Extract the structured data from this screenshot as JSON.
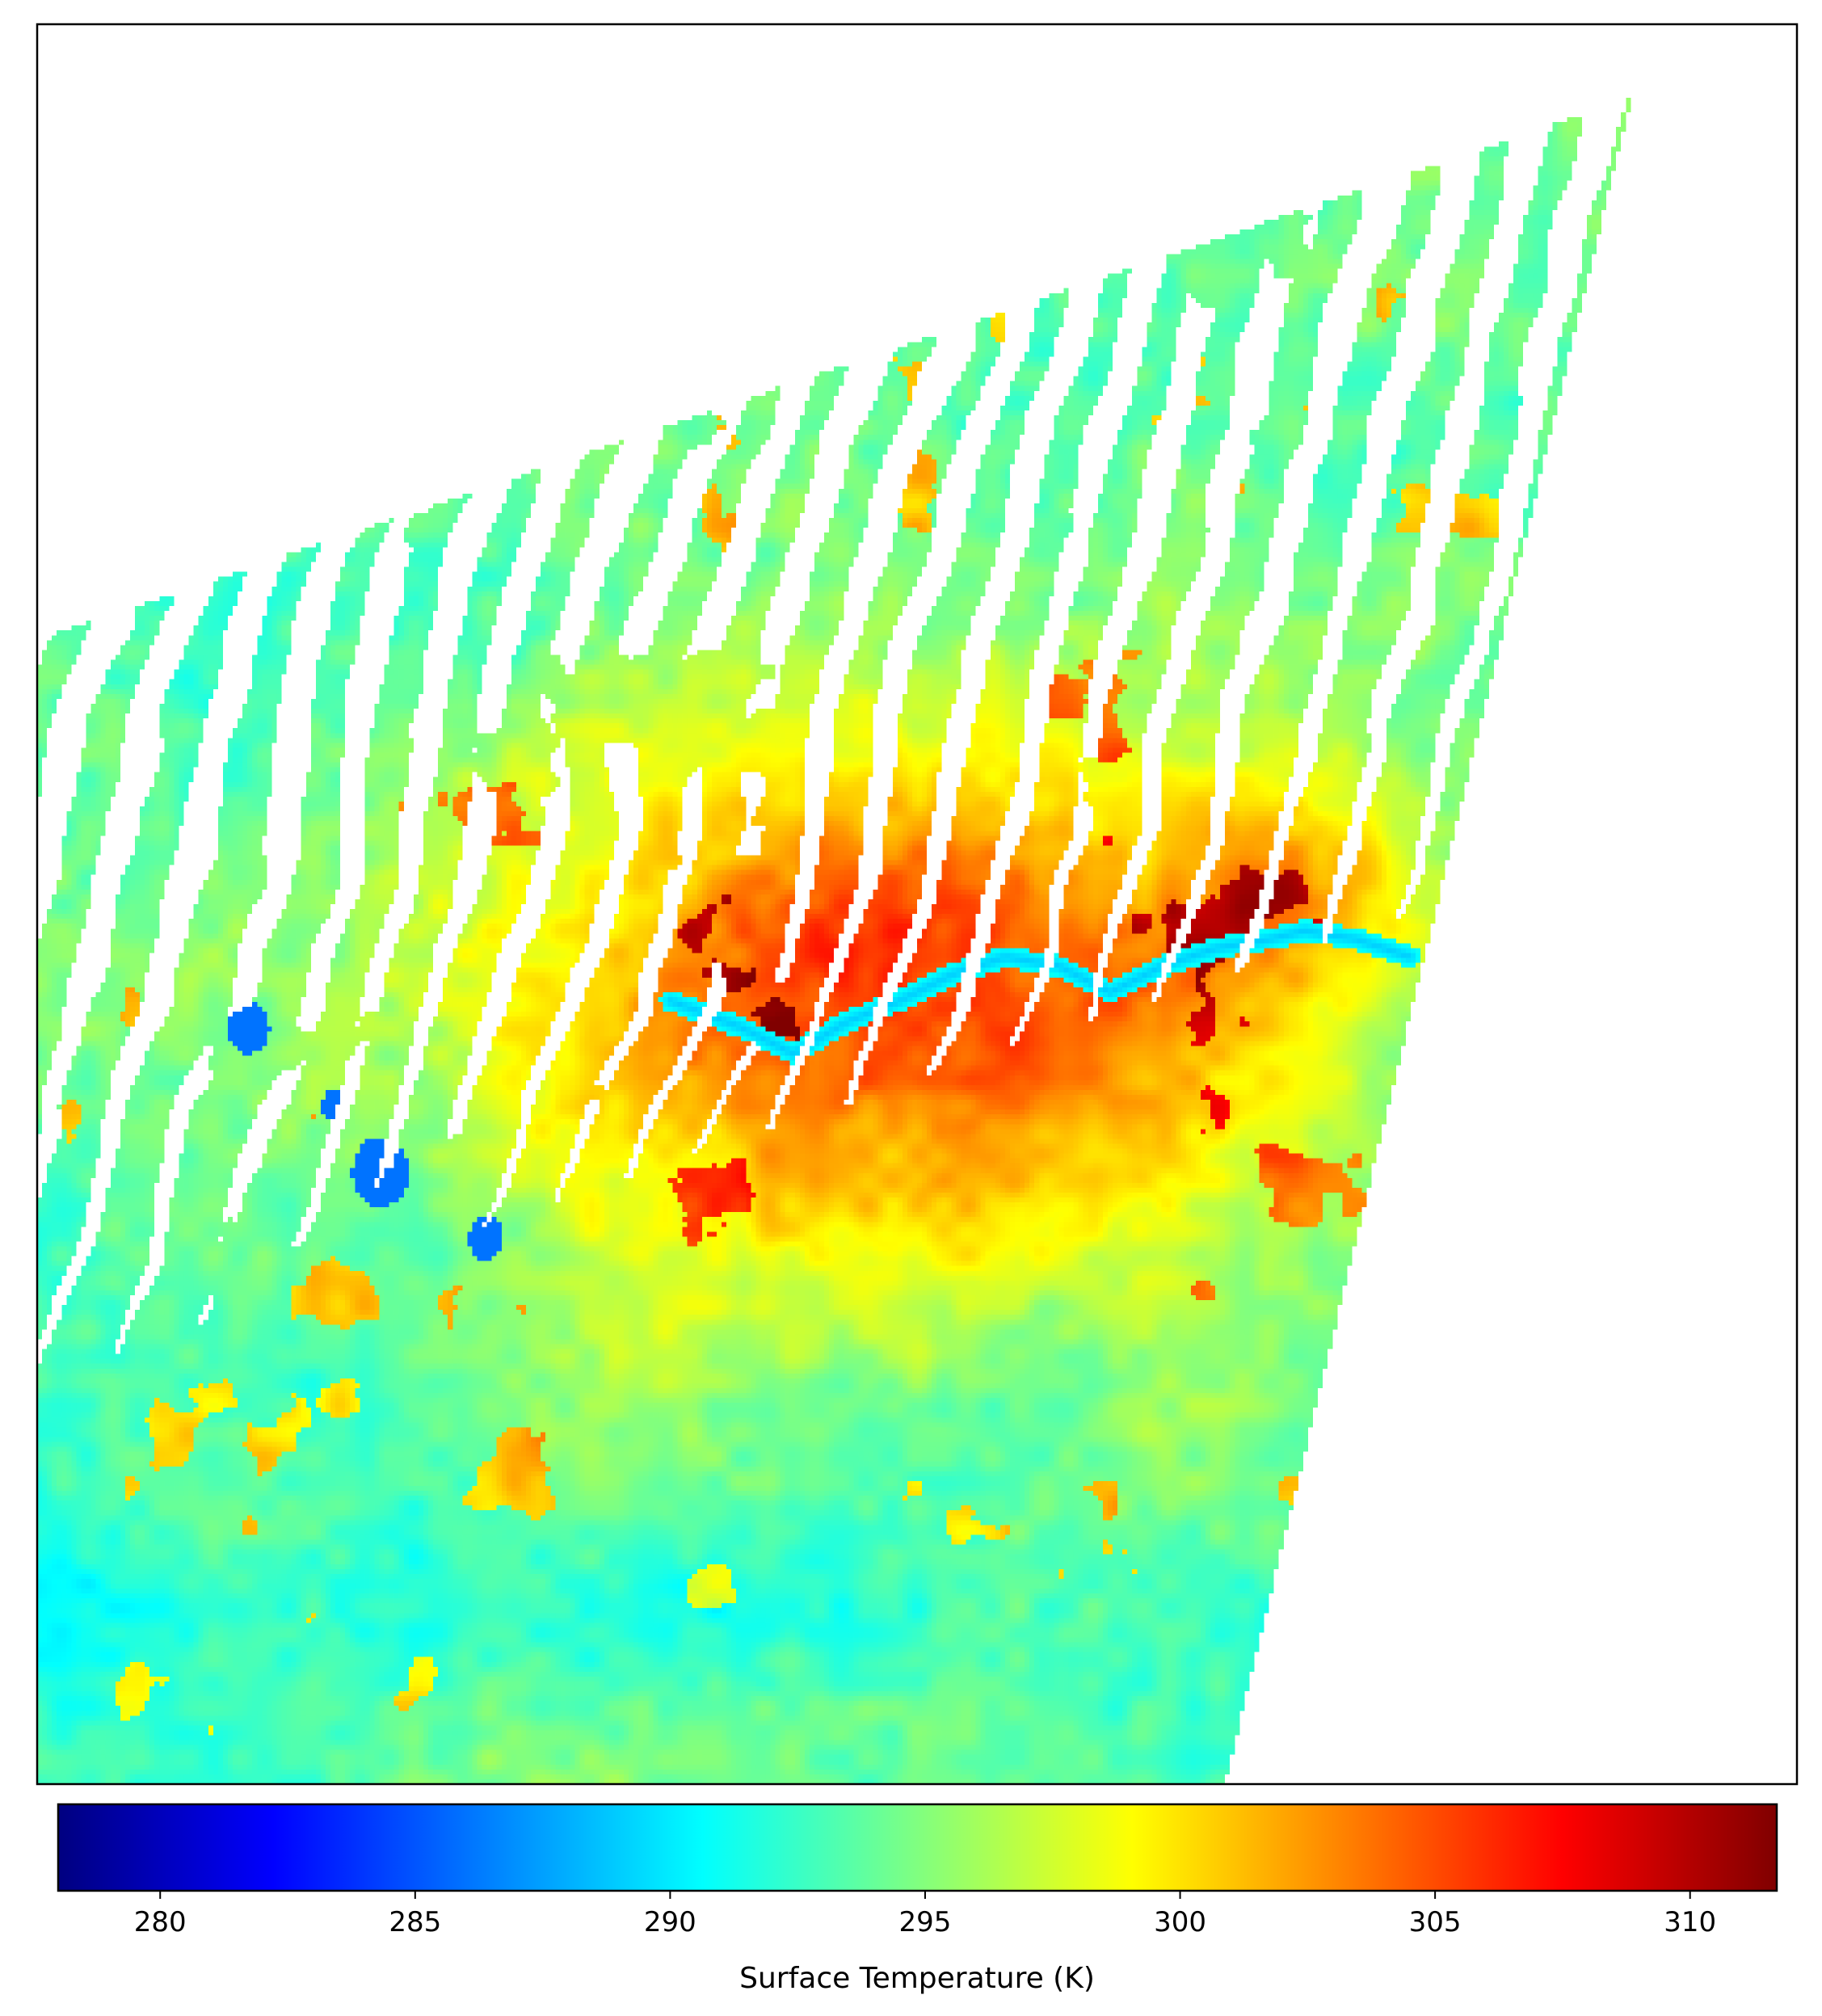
{
  "chart_data": {
    "type": "heatmap",
    "title": "",
    "subtitle": "",
    "variable": "Land surface temperature",
    "colormap": "jet",
    "vmin": 278,
    "vmax": 311.7,
    "nodata_color": "#ffffff",
    "axes_ticks_visible": false,
    "grid": false,
    "colorbar": {
      "orientation": "horizontal",
      "placement": "bottom",
      "label": "Surface Temperature (K)",
      "ticks": [
        280,
        285,
        290,
        295,
        300,
        305,
        310
      ],
      "tick_labels": [
        "280",
        "285",
        "290",
        "295",
        "300",
        "305",
        "310"
      ]
    },
    "field_summary": {
      "background_level": 294,
      "urban_core_level": 306,
      "river_level": 289,
      "lake_level": 286,
      "hotspot_peak": 311,
      "coldspot_min": 282
    }
  }
}
